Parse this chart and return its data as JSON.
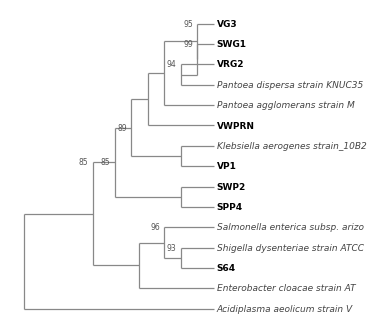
{
  "taxa": [
    {
      "name": "VG3",
      "bold": true,
      "y": 1
    },
    {
      "name": "SWG1",
      "bold": true,
      "y": 2
    },
    {
      "name": "VRG2",
      "bold": true,
      "y": 3
    },
    {
      "name": "Pantoea dispersa strain KNUC35",
      "bold": false,
      "y": 4
    },
    {
      "name": "Pantoea agglomerans strain M",
      "bold": false,
      "y": 5
    },
    {
      "name": "VWPRN",
      "bold": true,
      "y": 6
    },
    {
      "name": "Klebsiella aerogenes strain_10B2",
      "bold": false,
      "y": 7
    },
    {
      "name": "VP1",
      "bold": true,
      "y": 8
    },
    {
      "name": "SWP2",
      "bold": true,
      "y": 9
    },
    {
      "name": "SPP4",
      "bold": true,
      "y": 10
    },
    {
      "name": "Salmonella enterica subsp. arizo",
      "bold": false,
      "y": 11
    },
    {
      "name": "Shigella dysenteriae strain ATCC",
      "bold": false,
      "y": 12
    },
    {
      "name": "S64",
      "bold": true,
      "y": 13
    },
    {
      "name": "Enterobacter cloacae strain AT",
      "bold": false,
      "y": 14
    },
    {
      "name": "Acidiplasma aeolicum strain V",
      "bold": false,
      "y": 15
    }
  ],
  "bg_color": "#ffffff",
  "line_color": "#888888",
  "bold_color": "#000000",
  "italic_color": "#444444",
  "bootstrap_color": "#555555",
  "font_size_label": 6.5,
  "font_size_bootstrap": 5.5
}
